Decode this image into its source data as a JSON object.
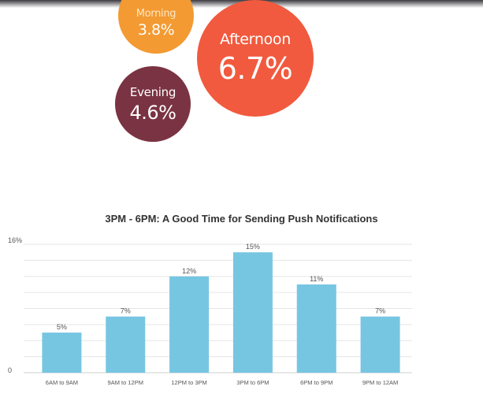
{
  "bubbles": {
    "morning": {
      "label": "Morning",
      "value": "3.8%",
      "color": "#f39a32"
    },
    "afternoon": {
      "label": "Afternoon",
      "value": "6.7%",
      "color": "#f15a3e"
    },
    "evening": {
      "label": "Evening",
      "value": "4.6%",
      "color": "#7a3342"
    }
  },
  "chart_data": {
    "type": "bar",
    "title": "3PM - 6PM:  A Good Time for Sending Push Notifications",
    "categories": [
      "6AM to 9AM",
      "9AM to 12PM",
      "12PM to 3PM",
      "3PM to 6PM",
      "6PM to 9PM",
      "9PM to 12AM"
    ],
    "values": [
      5,
      7,
      12,
      15,
      11,
      7
    ],
    "value_labels": [
      "5%",
      "7%",
      "12%",
      "15%",
      "11%",
      "7%"
    ],
    "y_ticks": [
      "0",
      "16%"
    ],
    "ylim": [
      0,
      16
    ],
    "grid": true,
    "bar_color": "#76c6e2",
    "xlabel": "",
    "ylabel": ""
  }
}
